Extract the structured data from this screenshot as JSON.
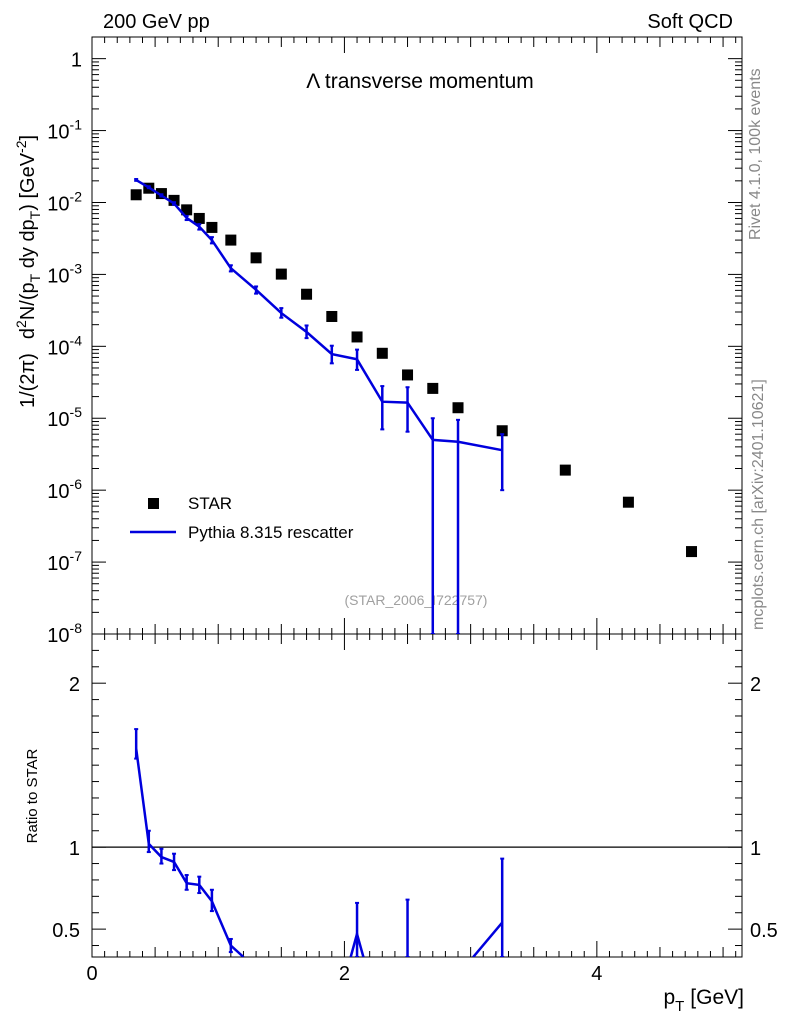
{
  "header": {
    "left": "200 GeV pp",
    "right": "Soft QCD"
  },
  "side_labels": {
    "rivet": "Rivet 4.1.0,  100k events",
    "mcplots": "mcplots.cern.ch [arXiv:2401.10621]"
  },
  "chart_data": {
    "type": "scatter",
    "title": "Λ transverse momentum",
    "watermark": "(STAR_2006_I722757)",
    "xlabel": "p_T [GeV]",
    "xlabel_main": "p",
    "xlabel_sub": "T",
    "xlabel_unit": "[GeV]",
    "ylabel": "1/(2π)  d²N/(p_T dy dp_T) [GeV⁻²]",
    "ylabel_prefix": "1/(2π)",
    "ylabel_d": "d",
    "ylabel_sup2": "2",
    "ylabel_mid": "N/(p",
    "ylabel_sub1": "T",
    "ylabel_mid2": " dy dp",
    "ylabel_sub2": "T",
    "ylabel_mid3": ") [GeV",
    "ylabel_sup3": "-2",
    "ylabel_end": "]",
    "xlim": [
      0,
      5.15
    ],
    "ylim_log": [
      1e-08,
      2
    ],
    "x_ticks": [
      "0",
      "2",
      "4"
    ],
    "y_ticks": [
      {
        "base": "1",
        "exp": ""
      },
      {
        "base": "10",
        "exp": "-1"
      },
      {
        "base": "10",
        "exp": "-2"
      },
      {
        "base": "10",
        "exp": "-3"
      },
      {
        "base": "10",
        "exp": "-4"
      },
      {
        "base": "10",
        "exp": "-5"
      },
      {
        "base": "10",
        "exp": "-6"
      },
      {
        "base": "10",
        "exp": "-7"
      },
      {
        "base": "10",
        "exp": "-8"
      }
    ],
    "legend": [
      {
        "name": "STAR",
        "marker": "square",
        "color": "#000000"
      },
      {
        "name": "Pythia 8.315 rescatter",
        "marker": "line",
        "color": "#0000dd"
      }
    ],
    "series": [
      {
        "name": "STAR",
        "color": "#000000",
        "x": [
          0.35,
          0.45,
          0.55,
          0.65,
          0.75,
          0.85,
          0.95,
          1.1,
          1.3,
          1.5,
          1.7,
          1.9,
          2.1,
          2.3,
          2.5,
          2.7,
          2.9,
          3.25,
          3.75,
          4.25,
          4.75
        ],
        "y": [
          0.0128,
          0.0158,
          0.0133,
          0.0107,
          0.0079,
          0.006,
          0.0045,
          0.003,
          0.0017,
          0.00101,
          0.00053,
          0.00026,
          0.000135,
          8e-05,
          4e-05,
          2.6e-05,
          1.4e-05,
          6.7e-06,
          1.9e-06,
          6.8e-07,
          1.4e-07
        ]
      },
      {
        "name": "Pythia 8.315 rescatter",
        "color": "#0000dd",
        "x": [
          0.35,
          0.45,
          0.55,
          0.65,
          0.75,
          0.85,
          0.95,
          1.1,
          1.3,
          1.5,
          1.7,
          1.9,
          2.1,
          2.3,
          2.5,
          2.7,
          2.9,
          3.25
        ],
        "y": [
          0.0205,
          0.0162,
          0.0125,
          0.0097,
          0.0061,
          0.0046,
          0.003,
          0.00122,
          0.00061,
          0.00029,
          0.000158,
          7.8e-05,
          6.6e-05,
          1.7e-05,
          1.65e-05,
          5e-06,
          4.7e-06,
          3.6e-06
        ],
        "err_low": [
          0.02,
          0.0158,
          0.0121,
          0.0093,
          0.0057,
          0.0042,
          0.0027,
          0.0011,
          0.00054,
          0.00025,
          0.00013,
          5.8e-05,
          4.7e-05,
          7e-06,
          6.5e-06,
          1e-09,
          1e-09,
          1e-06
        ],
        "err_high": [
          0.0212,
          0.0168,
          0.013,
          0.0101,
          0.0065,
          0.005,
          0.0033,
          0.00134,
          0.00068,
          0.00034,
          0.000195,
          0.000102,
          9e-05,
          2.8e-05,
          2.7e-05,
          1e-05,
          9.5e-06,
          6e-06
        ]
      }
    ],
    "ratio": {
      "ylabel": "Ratio to STAR",
      "ylim": [
        0.33,
        2.3
      ],
      "y_ticks": [
        "0.5",
        "1",
        "2"
      ],
      "reference": 1.0,
      "segments": [
        {
          "x": [
            0.35,
            0.45,
            0.55,
            0.65,
            0.75,
            0.85,
            0.95,
            1.1,
            1.2
          ],
          "y": [
            1.6,
            1.02,
            0.94,
            0.91,
            0.78,
            0.77,
            0.67,
            0.4,
            0.33
          ]
        },
        {
          "x": [
            2.05,
            2.1,
            2.15
          ],
          "y": [
            0.33,
            0.47,
            0.33
          ]
        },
        {
          "x": [
            3.02,
            3.25
          ],
          "y": [
            0.33,
            0.54
          ]
        }
      ],
      "errors": [
        {
          "x": 0.35,
          "lo": 1.54,
          "hi": 1.72
        },
        {
          "x": 0.45,
          "lo": 0.97,
          "hi": 1.1
        },
        {
          "x": 0.55,
          "lo": 0.9,
          "hi": 0.99
        },
        {
          "x": 0.65,
          "lo": 0.86,
          "hi": 0.96
        },
        {
          "x": 0.75,
          "lo": 0.74,
          "hi": 0.83
        },
        {
          "x": 0.85,
          "lo": 0.72,
          "hi": 0.82
        },
        {
          "x": 0.95,
          "lo": 0.61,
          "hi": 0.74
        },
        {
          "x": 1.1,
          "lo": 0.36,
          "hi": 0.44
        },
        {
          "x": 2.1,
          "lo": 0.33,
          "hi": 0.66
        },
        {
          "x": 2.5,
          "lo": 0.33,
          "hi": 0.68
        },
        {
          "x": 3.25,
          "lo": 0.33,
          "hi": 0.93
        }
      ]
    }
  }
}
